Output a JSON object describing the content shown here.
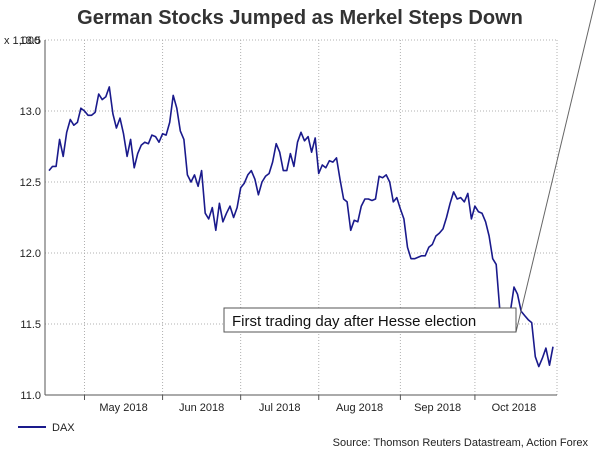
{
  "colors": {
    "series": "#1a1a8c",
    "grid": "#b0b0b0",
    "axis": "#555555"
  },
  "chart_data": {
    "type": "line",
    "title": "German Stocks Jumped as Merkel Steps Down",
    "unit_label": "x 1,000",
    "ylim": [
      11.0,
      13.5
    ],
    "y_ticks": [
      "11.0",
      "11.5",
      "12.0",
      "12.5",
      "13.0",
      "13.5"
    ],
    "x_ticks": [
      "May 2018",
      "Jun 2018",
      "Jul 2018",
      "Aug 2018",
      "Sep 2018",
      "Oct 2018"
    ],
    "grid": true,
    "legend": {
      "position": "bottom-left",
      "entries": [
        "DAX"
      ]
    },
    "source": "Source: Thomson Reuters Datastream, Action Forex",
    "annotation": {
      "text": "First trading day after Hesse election",
      "target_index": 154
    },
    "series": [
      {
        "name": "DAX",
        "values": [
          12.58,
          12.61,
          12.61,
          12.8,
          12.68,
          12.85,
          12.94,
          12.9,
          12.92,
          13.02,
          13.0,
          12.97,
          12.97,
          12.99,
          13.12,
          13.08,
          13.1,
          13.17,
          12.98,
          12.88,
          12.95,
          12.84,
          12.68,
          12.8,
          12.6,
          12.7,
          12.76,
          12.78,
          12.77,
          12.83,
          12.82,
          12.78,
          12.84,
          12.83,
          12.92,
          13.11,
          13.02,
          12.86,
          12.8,
          12.55,
          12.5,
          12.55,
          12.47,
          12.58,
          12.28,
          12.24,
          12.32,
          12.16,
          12.35,
          12.22,
          12.28,
          12.33,
          12.25,
          12.32,
          12.46,
          12.49,
          12.55,
          12.58,
          12.52,
          12.41,
          12.5,
          12.54,
          12.56,
          12.64,
          12.77,
          12.71,
          12.58,
          12.58,
          12.7,
          12.61,
          12.78,
          12.85,
          12.79,
          12.82,
          12.71,
          12.81,
          12.56,
          12.62,
          12.6,
          12.65,
          12.64,
          12.67,
          12.52,
          12.38,
          12.36,
          12.16,
          12.23,
          12.22,
          12.33,
          12.38,
          12.38,
          12.37,
          12.38,
          12.54,
          12.53,
          12.55,
          12.5,
          12.36,
          12.39,
          12.31,
          12.24,
          12.04,
          11.96,
          11.96,
          11.97,
          11.98,
          11.98,
          12.04,
          12.06,
          12.12,
          12.14,
          12.17,
          12.25,
          12.35,
          12.43,
          12.38,
          12.39,
          12.36,
          12.42,
          12.24,
          12.33,
          12.29,
          12.28,
          12.22,
          12.12,
          11.96,
          11.92,
          11.6,
          11.54,
          11.54,
          11.59,
          11.76,
          11.71,
          11.59,
          11.56,
          11.53,
          11.51,
          11.27,
          11.2,
          11.26,
          11.33,
          11.21,
          11.34
        ]
      }
    ]
  }
}
